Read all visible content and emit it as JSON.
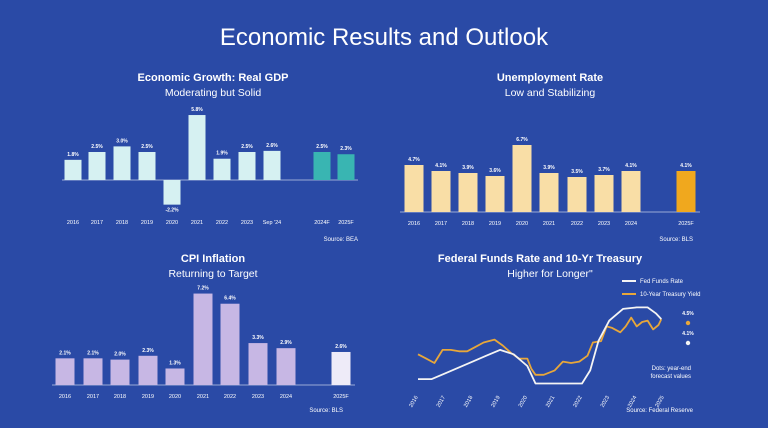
{
  "slide": {
    "title": "Economic Results and Outlook"
  },
  "chart_data": [
    {
      "id": "gdp",
      "type": "bar",
      "title": "Economic Growth: Real GDP",
      "subtitle": "Moderating but Solid",
      "categories": [
        "2016",
        "2017",
        "2018",
        "2019",
        "2020",
        "2021",
        "2022",
        "2023",
        "Sep '24",
        "2024F",
        "2025F"
      ],
      "values": [
        1.8,
        2.5,
        3.0,
        2.5,
        -2.2,
        5.8,
        1.9,
        2.5,
        2.6,
        2.5,
        2.3
      ],
      "labels": [
        "1.8%",
        "2.5%",
        "3.0%",
        "2.5%",
        "-2.2%",
        "5.8%",
        "1.9%",
        "2.5%",
        "2.6%",
        "2.5%",
        "2.3%"
      ],
      "colors": [
        "#d6f1f2",
        "#d6f1f2",
        "#d6f1f2",
        "#d6f1f2",
        "#d6f1f2",
        "#d6f1f2",
        "#d6f1f2",
        "#d6f1f2",
        "#d6f1f2",
        "#39b5b2",
        "#39b5b2"
      ],
      "source": "Source: BEA"
    },
    {
      "id": "unemp",
      "type": "bar",
      "title": "Unemployment Rate",
      "subtitle": "Low and Stabilizing",
      "categories": [
        "2016",
        "2017",
        "2018",
        "2019",
        "2020",
        "2021",
        "2022",
        "2023",
        "2024",
        "2025F"
      ],
      "values": [
        4.7,
        4.1,
        3.9,
        3.6,
        6.7,
        3.9,
        3.5,
        3.7,
        4.1,
        4.1
      ],
      "labels": [
        "4.7%",
        "4.1%",
        "3.9%",
        "3.6%",
        "6.7%",
        "3.9%",
        "3.5%",
        "3.7%",
        "4.1%",
        "4.1%"
      ],
      "colors": [
        "#f9dea6",
        "#f9dea6",
        "#f9dea6",
        "#f9dea6",
        "#f9dea6",
        "#f9dea6",
        "#f9dea6",
        "#f9dea6",
        "#f9dea6",
        "#f0a81e"
      ],
      "source": "Source: BLS"
    },
    {
      "id": "cpi",
      "type": "bar",
      "title": "CPI Inflation",
      "subtitle": "Returning to Target",
      "categories": [
        "2016",
        "2017",
        "2018",
        "2019",
        "2020",
        "2021",
        "2022",
        "2023",
        "2024",
        "2025F"
      ],
      "values": [
        2.1,
        2.1,
        2.0,
        2.3,
        1.3,
        7.2,
        6.4,
        3.3,
        2.9,
        2.6
      ],
      "labels": [
        "2.1%",
        "2.1%",
        "2.0%",
        "2.3%",
        "1.3%",
        "7.2%",
        "6.4%",
        "3.3%",
        "2.9%",
        "2.6%"
      ],
      "colors": [
        "#c7b7e4",
        "#c7b7e4",
        "#c7b7e4",
        "#c7b7e4",
        "#c7b7e4",
        "#c7b7e4",
        "#c7b7e4",
        "#c7b7e4",
        "#c7b7e4",
        "#eeebf8"
      ],
      "source": "Source: BLS"
    },
    {
      "id": "rates",
      "type": "line",
      "title": "Federal Funds Rate and 10-Yr Treasury",
      "subtitle": "Higher for Longer\"",
      "x_ticks": [
        "2016",
        "2017",
        "2018",
        "2019",
        "2020",
        "2021",
        "2022",
        "2023",
        "2024",
        "2025"
      ],
      "xlim": [
        2016,
        2025
      ],
      "ylim": [
        0,
        5.6
      ],
      "series": [
        {
          "name": "Fed Funds Rate",
          "color": "#f4f4f4",
          "x": [
            2016.0,
            2016.5,
            2017.0,
            2017.5,
            2018.0,
            2018.5,
            2019.0,
            2019.5,
            2020.0,
            2020.3,
            2021.0,
            2021.5,
            2022.0,
            2022.3,
            2022.6,
            2023.0,
            2023.5,
            2024.0,
            2024.4,
            2024.7,
            2024.9
          ],
          "y": [
            0.4,
            0.4,
            0.8,
            1.2,
            1.6,
            2.0,
            2.4,
            2.1,
            1.3,
            0.1,
            0.1,
            0.1,
            0.1,
            1.0,
            3.0,
            4.4,
            5.2,
            5.3,
            5.3,
            4.9,
            4.5
          ]
        },
        {
          "name": "10-Year Treasury Yield",
          "color": "#e8a73a",
          "x": [
            2016.0,
            2016.3,
            2016.6,
            2016.9,
            2017.2,
            2017.5,
            2017.8,
            2018.1,
            2018.4,
            2018.8,
            2019.1,
            2019.4,
            2019.7,
            2020.0,
            2020.15,
            2020.3,
            2020.6,
            2021.0,
            2021.3,
            2021.6,
            2021.9,
            2022.2,
            2022.4,
            2022.7,
            2022.9,
            2023.1,
            2023.4,
            2023.6,
            2023.8,
            2024.0,
            2024.2,
            2024.4,
            2024.6,
            2024.8,
            2024.9
          ],
          "y": [
            2.1,
            1.8,
            1.5,
            2.4,
            2.4,
            2.3,
            2.3,
            2.6,
            2.9,
            3.1,
            2.7,
            2.2,
            1.8,
            1.8,
            1.1,
            0.7,
            0.7,
            1.0,
            1.6,
            1.5,
            1.6,
            2.0,
            2.9,
            3.0,
            4.0,
            3.9,
            3.6,
            4.0,
            4.6,
            4.0,
            4.3,
            4.4,
            3.8,
            4.1,
            4.5
          ]
        }
      ],
      "markers": [
        {
          "label": "4.5%",
          "value": 4.5,
          "color": "#e8a73a"
        },
        {
          "label": "4.1%",
          "value": 4.1,
          "color": "#f4f4f4"
        }
      ],
      "note": [
        "Dots: year-end",
        "forecast values"
      ],
      "source": "Source: Federal Reserve"
    }
  ]
}
